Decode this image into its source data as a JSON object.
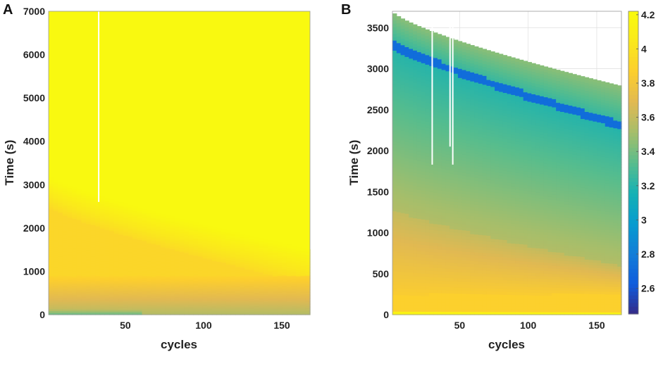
{
  "chart_data": [
    {
      "type": "heatmap",
      "panel_label": "A",
      "title": "",
      "xlabel": "cycles",
      "ylabel": "Time (s)",
      "xlim": [
        1,
        168
      ],
      "ylim": [
        0,
        7000
      ],
      "xticks": [
        50,
        100,
        150
      ],
      "yticks": [
        0,
        1000,
        2000,
        3000,
        4000,
        5000,
        6000,
        7000
      ],
      "colormap": "parula",
      "color_range": [
        2.45,
        4.22
      ],
      "background_value": 4.2,
      "data_end_time_start": 3200,
      "data_end_time_final": 1500,
      "plateau_end_time_start": 2500,
      "plateau_end_time_final": 700,
      "gap_cycles": [
        {
          "cycle": 33,
          "from": 2600,
          "to": 7000
        }
      ],
      "low_band_end_cycle": 60
    },
    {
      "type": "heatmap",
      "panel_label": "B",
      "title": "",
      "xlabel": "cycles",
      "ylabel": "Time (s)",
      "xlim": [
        1,
        168
      ],
      "ylim": [
        0,
        3700
      ],
      "xticks": [
        50,
        100,
        150
      ],
      "yticks": [
        0,
        500,
        1000,
        1500,
        2000,
        2500,
        3000,
        3500
      ],
      "colormap": "parula",
      "colorbar": {
        "ticks": [
          2.6,
          2.8,
          3,
          3.2,
          3.4,
          3.6,
          3.8,
          4,
          4.2
        ],
        "range": [
          2.45,
          4.22
        ]
      },
      "grid": true,
      "top_time_start": 3700,
      "top_time_final": 2790,
      "dip_time_start": 3320,
      "dip_time_final": 2320,
      "plateau_end_time_start": 1300,
      "plateau_end_time_final": 600,
      "gap_cycles": [
        {
          "cycle": 30,
          "from": 1830,
          "to": 3700
        },
        {
          "cycle": 43,
          "from": 2050,
          "to": 3700
        },
        {
          "cycle": 45,
          "from": 1830,
          "to": 3700
        }
      ]
    }
  ]
}
